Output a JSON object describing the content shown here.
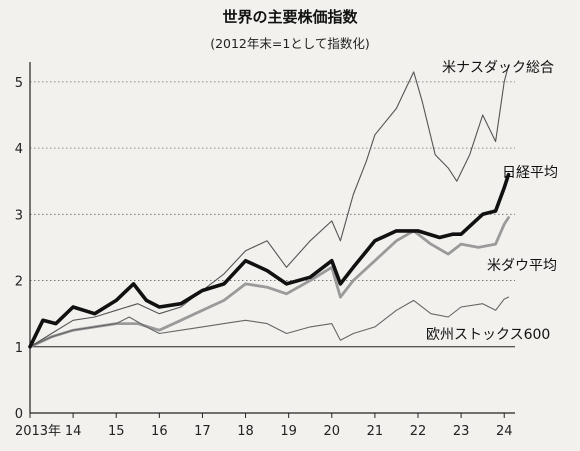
{
  "chart_data": {
    "type": "line",
    "title": "世界の主要株価指数",
    "subtitle": "(2012年末=1として指数化)",
    "xlabel": "",
    "ylabel": "",
    "x_ticks": [
      "2013年",
      "14",
      "15",
      "16",
      "17",
      "18",
      "19",
      "20",
      "21",
      "22",
      "23",
      "24"
    ],
    "y_ticks": [
      0,
      1,
      2,
      3,
      4,
      5
    ],
    "xlim": [
      2013.0,
      2024.25
    ],
    "ylim": [
      0,
      5.3
    ],
    "grid": "dotted horizontal",
    "reference_line": 1,
    "legend": "labels next to lines",
    "series": [
      {
        "name": "米ナスダック総合",
        "color": "#555555",
        "style": "thin",
        "x": [
          2013.0,
          2013.5,
          2014.0,
          2014.5,
          2015.0,
          2015.5,
          2016.0,
          2016.5,
          2017.0,
          2017.5,
          2018.0,
          2018.5,
          2018.95,
          2019.5,
          2020.0,
          2020.2,
          2020.5,
          2020.8,
          2021.0,
          2021.5,
          2021.9,
          2022.1,
          2022.4,
          2022.7,
          2022.9,
          2023.2,
          2023.5,
          2023.8,
          2024.0,
          2024.1
        ],
        "y": [
          1.0,
          1.2,
          1.4,
          1.45,
          1.55,
          1.65,
          1.5,
          1.6,
          1.85,
          2.1,
          2.45,
          2.6,
          2.2,
          2.6,
          2.9,
          2.6,
          3.3,
          3.8,
          4.2,
          4.6,
          5.15,
          4.7,
          3.9,
          3.7,
          3.5,
          3.9,
          4.5,
          4.1,
          5.0,
          5.25
        ]
      },
      {
        "name": "日経平均",
        "color": "#111111",
        "style": "bold",
        "x": [
          2013.0,
          2013.3,
          2013.6,
          2014.0,
          2014.5,
          2015.0,
          2015.4,
          2015.7,
          2016.0,
          2016.5,
          2017.0,
          2017.5,
          2018.0,
          2018.5,
          2018.95,
          2019.5,
          2020.0,
          2020.2,
          2020.5,
          2021.0,
          2021.5,
          2022.0,
          2022.5,
          2022.8,
          2023.0,
          2023.5,
          2023.8,
          2024.0,
          2024.1
        ],
        "y": [
          1.0,
          1.4,
          1.35,
          1.6,
          1.5,
          1.7,
          1.95,
          1.7,
          1.6,
          1.65,
          1.85,
          1.95,
          2.3,
          2.15,
          1.95,
          2.05,
          2.3,
          1.95,
          2.2,
          2.6,
          2.75,
          2.75,
          2.65,
          2.7,
          2.7,
          3.0,
          3.05,
          3.4,
          3.6
        ]
      },
      {
        "name": "米ダウ平均",
        "color": "#9a9a9a",
        "style": "medium",
        "x": [
          2013.0,
          2013.5,
          2014.0,
          2014.5,
          2015.0,
          2015.5,
          2016.0,
          2016.5,
          2017.0,
          2017.5,
          2018.0,
          2018.5,
          2018.95,
          2019.5,
          2020.0,
          2020.2,
          2020.5,
          2021.0,
          2021.5,
          2021.9,
          2022.3,
          2022.7,
          2023.0,
          2023.4,
          2023.8,
          2024.0,
          2024.1
        ],
        "y": [
          1.0,
          1.15,
          1.25,
          1.3,
          1.35,
          1.35,
          1.25,
          1.4,
          1.55,
          1.7,
          1.95,
          1.9,
          1.8,
          2.0,
          2.2,
          1.75,
          2.0,
          2.3,
          2.6,
          2.75,
          2.55,
          2.4,
          2.55,
          2.5,
          2.55,
          2.85,
          2.95
        ]
      },
      {
        "name": "欧州ストックス600",
        "color": "#666666",
        "style": "thin",
        "x": [
          2013.0,
          2013.5,
          2014.0,
          2014.5,
          2015.0,
          2015.3,
          2015.7,
          2016.0,
          2016.5,
          2017.0,
          2017.5,
          2018.0,
          2018.5,
          2018.95,
          2019.5,
          2020.0,
          2020.2,
          2020.5,
          2021.0,
          2021.5,
          2021.9,
          2022.3,
          2022.7,
          2023.0,
          2023.5,
          2023.8,
          2024.0,
          2024.1
        ],
        "y": [
          1.0,
          1.15,
          1.25,
          1.3,
          1.35,
          1.45,
          1.3,
          1.2,
          1.25,
          1.3,
          1.35,
          1.4,
          1.35,
          1.2,
          1.3,
          1.35,
          1.1,
          1.2,
          1.3,
          1.55,
          1.7,
          1.5,
          1.45,
          1.6,
          1.65,
          1.55,
          1.72,
          1.75
        ]
      }
    ]
  }
}
